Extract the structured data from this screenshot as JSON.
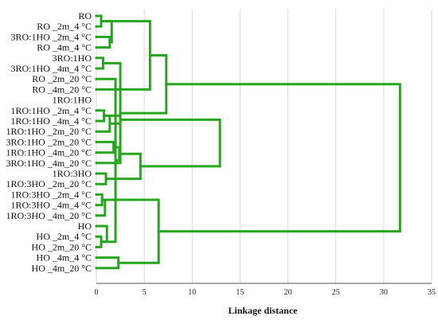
{
  "chart_data": {
    "type": "dendrogram",
    "orientation": "horizontal",
    "xlabel": "Linkage distance",
    "xlim": [
      0,
      35
    ],
    "xticks": [
      "0",
      "5",
      "10",
      "15",
      "20",
      "25",
      "30",
      "35"
    ],
    "grid": true,
    "line_color": "#27a51f",
    "leaves": [
      "RO",
      "RO _2m_4 °C",
      "3RO:1HO _2m_4 °C",
      "RO _4m_4 °C",
      "3RO:1HO",
      "3RO:1HO _4m_4 °C",
      "RO _2m_20 °C",
      "RO _4m_20 °C",
      "1RO:1HO",
      "1RO:1HO _2m_4 °C",
      "1RO:1HO _4m_4 °C",
      "1RO:1HO _2m_20 °C",
      "3RO:1HO _2m_20 °C",
      "1RO:1HO _4m_20 °C",
      "3RO:1HO _4m_20 °C",
      "1RO:3HO",
      "1RO:3HO _2m_20 °C",
      "1RO:3HO _2m_4 °C",
      "1RO:3HO _4m_4 °C",
      "1RO:3HO _4m_20 °C",
      "HO",
      "HO _2m_4 °C",
      "HO _2m_20 °C",
      "HO _4m_4 °C",
      "HO _4m_20 °C"
    ],
    "merges": [
      [
        0,
        1,
        0.5
      ],
      [
        4,
        5,
        0.7
      ],
      [
        9,
        10,
        0.8
      ],
      [
        12,
        13,
        1.8
      ],
      [
        17,
        18,
        0.6
      ],
      [
        21,
        22,
        0.5
      ],
      [
        2,
        3,
        1.4
      ],
      [
        25,
        31,
        1.6
      ],
      [
        30,
        6,
        2.0
      ],
      [
        27,
        11,
        1.4
      ],
      [
        29,
        19,
        0.9
      ],
      [
        20,
        30,
        1.1
      ],
      [
        15,
        16,
        1.0
      ],
      [
        23,
        24,
        2.3
      ],
      [
        33,
        28,
        2.4
      ],
      [
        27,
        34,
        2.5
      ],
      [
        26,
        14,
        2.5
      ],
      [
        25,
        7,
        5.6
      ],
      [
        37,
        39,
        4.6
      ],
      [
        38,
        29,
        6.5
      ],
      [
        42,
        41,
        7.3
      ],
      [
        43,
        40,
        12.9
      ],
      [
        44,
        45,
        31.7
      ]
    ]
  }
}
